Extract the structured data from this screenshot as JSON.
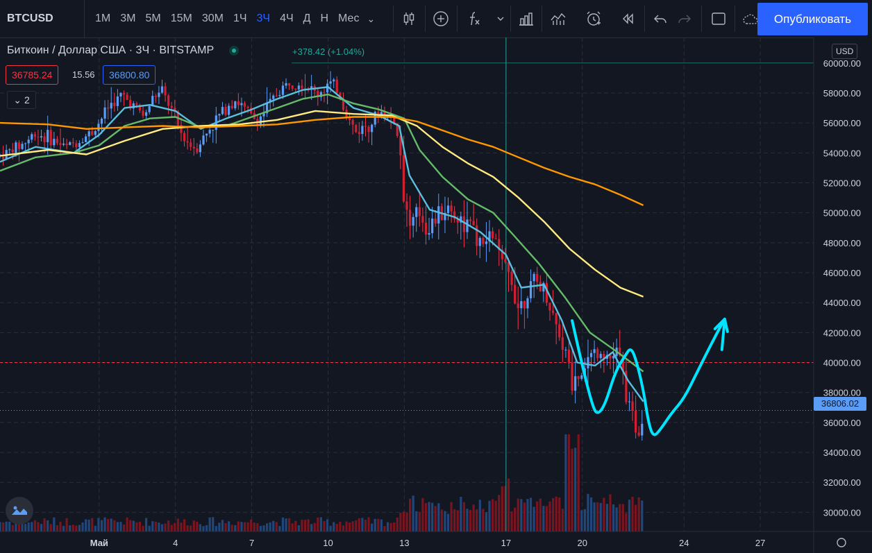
{
  "toolbar": {
    "symbol": "BTCUSD",
    "intervals": [
      "1М",
      "3М",
      "5М",
      "15М",
      "30М",
      "1Ч",
      "3Ч",
      "4Ч",
      "Д",
      "Н",
      "Мес"
    ],
    "active_interval": "3Ч",
    "publish_label": "Опубликовать",
    "icons": [
      "candles-icon",
      "plus-circle-icon",
      "fx-icon",
      "chevron-down-icon",
      "bars-icon",
      "compare-icon",
      "alarm-icon",
      "replay-icon",
      "undo-icon",
      "redo-icon",
      "layout-icon",
      "cloud-icon"
    ]
  },
  "legend": {
    "title": "Биткоин / Доллар США · 3Ч · BITSTAMP",
    "change": "+378.42 (+1.04%)",
    "bid": "36785.24",
    "spread": "15.56",
    "ask": "36800.80",
    "indicators_count": "2"
  },
  "price_axis": {
    "currency": "USD",
    "last_price": "36806.02"
  },
  "colors": {
    "background": "#131722",
    "up": "#26a69a",
    "down": "#ef5350",
    "ma_fast": "#5bc0de",
    "ma_mid": "#66bb6a",
    "ma_slow": "#ffeb80",
    "ma_long": "#ff9800",
    "drawing": "#00e5ff"
  },
  "chart_data": {
    "type": "candlestick",
    "title": "Биткоин / Доллар США · 3Ч · BITSTAMP",
    "y_ticks": [
      30000,
      32000,
      34000,
      36000,
      38000,
      40000,
      42000,
      44000,
      46000,
      48000,
      50000,
      52000,
      54000,
      56000,
      58000
    ],
    "y_tick_labels": [
      "30000.00",
      "32000.00",
      "34000.00",
      "36000.00",
      "38000.00",
      "40000.00",
      "42000.00",
      "44000.00",
      "46000.00",
      "48000.00",
      "50000.00",
      "52000.00",
      "54000.00",
      "56000.00",
      "58000.00"
    ],
    "ylim": [
      29000,
      60500
    ],
    "x_ticks": [
      {
        "label": "Май",
        "day": 1
      },
      {
        "label": "4",
        "day": 4
      },
      {
        "label": "7",
        "day": 7
      },
      {
        "label": "10",
        "day": 10
      },
      {
        "label": "13",
        "day": 13
      },
      {
        "label": "17",
        "day": 17
      },
      {
        "label": "20",
        "day": 20
      },
      {
        "label": "24",
        "day": 24
      },
      {
        "label": "27",
        "day": 27
      }
    ],
    "xlim_days": [
      -2.9,
      29.1
    ],
    "horizontal_line": 40000,
    "last_price": 36806.02,
    "vertical_marker_day": 17,
    "price_path": [
      [
        -2.9,
        53800
      ],
      [
        -2.0,
        54600
      ],
      [
        -1.5,
        55300
      ],
      [
        -1.0,
        55000
      ],
      [
        -0.3,
        54400
      ],
      [
        0.3,
        54900
      ],
      [
        0.8,
        55500
      ],
      [
        1.4,
        57200
      ],
      [
        1.9,
        57800
      ],
      [
        2.4,
        57100
      ],
      [
        2.8,
        56400
      ],
      [
        3.1,
        57700
      ],
      [
        3.5,
        58100
      ],
      [
        3.9,
        56600
      ],
      [
        4.3,
        55000
      ],
      [
        4.8,
        54300
      ],
      [
        5.3,
        55500
      ],
      [
        5.8,
        56700
      ],
      [
        6.3,
        57600
      ],
      [
        6.8,
        56800
      ],
      [
        7.2,
        56100
      ],
      [
        7.6,
        57000
      ],
      [
        8.0,
        58000
      ],
      [
        8.4,
        58600
      ],
      [
        8.8,
        58900
      ],
      [
        9.2,
        58400
      ],
      [
        9.6,
        57900
      ],
      [
        10.0,
        58600
      ],
      [
        10.4,
        58200
      ],
      [
        10.7,
        56600
      ],
      [
        11.1,
        55400
      ],
      [
        11.6,
        56000
      ],
      [
        12.1,
        56700
      ],
      [
        12.6,
        56200
      ],
      [
        12.9,
        53500
      ],
      [
        13.0,
        50800
      ],
      [
        13.2,
        49200
      ],
      [
        13.6,
        50000
      ],
      [
        13.9,
        48900
      ],
      [
        14.3,
        49800
      ],
      [
        14.7,
        50400
      ],
      [
        15.1,
        49600
      ],
      [
        15.6,
        49100
      ],
      [
        16.0,
        47600
      ],
      [
        16.5,
        48700
      ],
      [
        16.8,
        46600
      ],
      [
        17.2,
        45600
      ],
      [
        17.5,
        43700
      ],
      [
        17.9,
        44900
      ],
      [
        18.3,
        45400
      ],
      [
        18.6,
        44400
      ],
      [
        19.0,
        42500
      ],
      [
        19.3,
        40800
      ],
      [
        19.6,
        38600
      ],
      [
        19.9,
        39400
      ],
      [
        20.3,
        40400
      ],
      [
        20.7,
        41000
      ],
      [
        21.1,
        40300
      ],
      [
        21.4,
        40700
      ],
      [
        21.7,
        38300
      ],
      [
        21.9,
        36400
      ],
      [
        22.2,
        35600
      ],
      [
        22.4,
        36800
      ]
    ],
    "series": [
      {
        "name": "",
        "color": "#5bc0de",
        "points": [
          [
            -2.9,
            53400
          ],
          [
            -1.5,
            54400
          ],
          [
            0,
            54000
          ],
          [
            1,
            55200
          ],
          [
            2,
            57000
          ],
          [
            3,
            57200
          ],
          [
            4,
            56800
          ],
          [
            5,
            55600
          ],
          [
            6,
            56300
          ],
          [
            7,
            56900
          ],
          [
            8,
            57600
          ],
          [
            9,
            58200
          ],
          [
            10,
            58400
          ],
          [
            11,
            57000
          ],
          [
            12,
            56500
          ],
          [
            12.8,
            55800
          ],
          [
            13.2,
            52500
          ],
          [
            14,
            50200
          ],
          [
            15,
            49700
          ],
          [
            16,
            48700
          ],
          [
            17,
            47200
          ],
          [
            17.6,
            45000
          ],
          [
            18.5,
            45200
          ],
          [
            19.2,
            42800
          ],
          [
            19.8,
            40000
          ],
          [
            20.5,
            39800
          ],
          [
            21.2,
            40700
          ],
          [
            21.8,
            38800
          ],
          [
            22.4,
            37400
          ]
        ]
      },
      {
        "name": "",
        "color": "#66bb6a",
        "points": [
          [
            -2.9,
            52800
          ],
          [
            -1.5,
            53700
          ],
          [
            0,
            54000
          ],
          [
            1,
            54500
          ],
          [
            2,
            55800
          ],
          [
            3,
            56300
          ],
          [
            4,
            56400
          ],
          [
            5,
            55700
          ],
          [
            6,
            55800
          ],
          [
            7,
            56400
          ],
          [
            8,
            57000
          ],
          [
            9,
            57600
          ],
          [
            10,
            57900
          ],
          [
            11,
            57300
          ],
          [
            12,
            56900
          ],
          [
            13,
            56300
          ],
          [
            13.6,
            54200
          ],
          [
            14.5,
            52400
          ],
          [
            15.5,
            50900
          ],
          [
            16.5,
            50000
          ],
          [
            17.3,
            48500
          ],
          [
            18.3,
            46600
          ],
          [
            19.3,
            44400
          ],
          [
            20.3,
            42000
          ],
          [
            21.3,
            40800
          ],
          [
            22.4,
            39400
          ]
        ]
      },
      {
        "name": "",
        "color": "#ffeb80",
        "points": [
          [
            -2.9,
            53800
          ],
          [
            -1,
            54200
          ],
          [
            0.5,
            53900
          ],
          [
            2,
            54800
          ],
          [
            3.5,
            55600
          ],
          [
            5,
            55800
          ],
          [
            6.5,
            55900
          ],
          [
            8,
            56200
          ],
          [
            9.5,
            56800
          ],
          [
            11,
            56600
          ],
          [
            12.5,
            56500
          ],
          [
            13.5,
            55800
          ],
          [
            14.5,
            54400
          ],
          [
            15.5,
            53300
          ],
          [
            16.5,
            52400
          ],
          [
            17.5,
            51000
          ],
          [
            18.5,
            49400
          ],
          [
            19.5,
            47600
          ],
          [
            20.5,
            46200
          ],
          [
            21.5,
            45000
          ],
          [
            22.4,
            44400
          ]
        ]
      },
      {
        "name": "",
        "color": "#ff9800",
        "points": [
          [
            -2.9,
            56000
          ],
          [
            -1,
            55900
          ],
          [
            0.5,
            55600
          ],
          [
            2,
            55700
          ],
          [
            3.5,
            55800
          ],
          [
            5,
            55700
          ],
          [
            6.5,
            55800
          ],
          [
            8,
            55900
          ],
          [
            9.5,
            56200
          ],
          [
            11,
            56400
          ],
          [
            12.5,
            56400
          ],
          [
            13.5,
            56100
          ],
          [
            14.5,
            55500
          ],
          [
            15.5,
            54900
          ],
          [
            16.5,
            54400
          ],
          [
            17.5,
            53700
          ],
          [
            18.5,
            53000
          ],
          [
            19.5,
            52400
          ],
          [
            20.5,
            51900
          ],
          [
            21.5,
            51200
          ],
          [
            22.4,
            50500
          ]
        ]
      }
    ],
    "drawing_path": [
      [
        19.6,
        42800
      ],
      [
        20.0,
        39800
      ],
      [
        20.4,
        37100
      ],
      [
        20.6,
        36500
      ],
      [
        20.9,
        37200
      ],
      [
        21.3,
        39400
      ],
      [
        21.7,
        40500
      ],
      [
        21.9,
        41000
      ],
      [
        22.1,
        40300
      ],
      [
        22.4,
        38200
      ],
      [
        22.6,
        36000
      ],
      [
        22.8,
        35000
      ],
      [
        23.1,
        35600
      ],
      [
        23.5,
        36600
      ],
      [
        24.0,
        37600
      ],
      [
        24.5,
        39300
      ],
      [
        25.0,
        41000
      ],
      [
        25.4,
        42300
      ],
      [
        25.6,
        42900
      ]
    ],
    "volume": {
      "peak_day": 19.6,
      "base": 0.15
    }
  }
}
